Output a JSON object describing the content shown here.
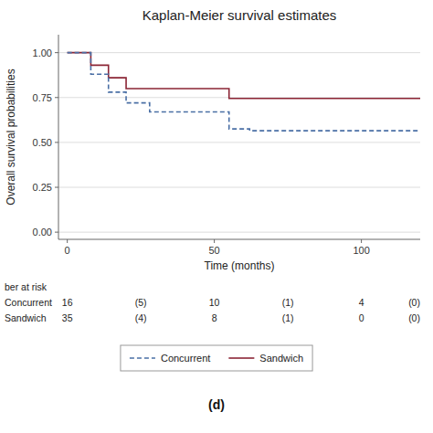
{
  "chart_data": {
    "type": "step",
    "title": "Kaplan-Meier survival estimates",
    "subtitle": "(d)",
    "x_label": "Time (months)",
    "y_label": "Overall survival probabilities",
    "xlim": [
      -3,
      120
    ],
    "ylim": [
      -0.04,
      1.1
    ],
    "xticks": [
      0,
      50,
      100
    ],
    "yticks": [
      {
        "value": 0.0,
        "label": "0.00"
      },
      0.25,
      {
        "value": 0.5,
        "label": "0.50"
      },
      0.75,
      {
        "value": 1.0,
        "label": "1.00"
      }
    ],
    "grid": "y",
    "legend": "bottom",
    "series": [
      {
        "name": "Sandwich",
        "color": "#8b2535",
        "line_style": "solid",
        "x": [
          0,
          8,
          8,
          14,
          14,
          20,
          20,
          55,
          55,
          120
        ],
        "values": [
          1.0,
          1.0,
          0.93,
          0.93,
          0.86,
          0.86,
          0.8,
          0.8,
          0.745,
          0.745
        ]
      },
      {
        "name": "Concurrent",
        "color": "#4a6fa5",
        "line_style": "dashed",
        "x": [
          0,
          8,
          8,
          14,
          14,
          20,
          20,
          28,
          28,
          55,
          55,
          62,
          62,
          120
        ],
        "values": [
          1.0,
          1.0,
          0.88,
          0.88,
          0.78,
          0.78,
          0.72,
          0.72,
          0.67,
          0.67,
          0.575,
          0.575,
          0.565,
          0.565
        ]
      }
    ],
    "risk_table": {
      "header": "ber at risk",
      "x": [
        0,
        25,
        50,
        75,
        100,
        118
      ],
      "rows": [
        {
          "label": "Concurrent",
          "values": [
            16,
            5,
            10,
            1,
            4,
            0
          ],
          "value_labels": [
            "16",
            "(5)",
            "10",
            "(1)",
            "4",
            "(0)"
          ]
        },
        {
          "label": "Sandwich",
          "values": [
            35,
            4,
            8,
            1,
            0,
            0
          ],
          "value_labels": [
            "35",
            "(4)",
            "8",
            "(1)",
            "0",
            "(0)"
          ]
        }
      ]
    }
  }
}
